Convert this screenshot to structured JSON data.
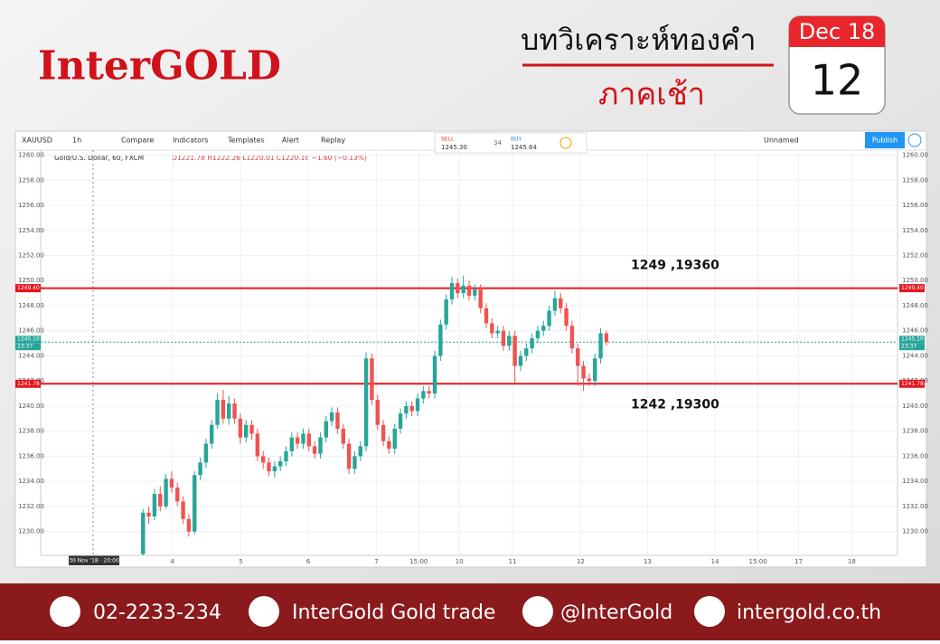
{
  "header": {
    "brand": "InterGOLD",
    "title": "บทวิเคราะห์ทองคำ",
    "subtitle": "ภาคเช้า",
    "calendar_month": "Dec 18",
    "calendar_day": "12"
  },
  "toolbar": {
    "symbol": "XAUUSD",
    "interval": "1h",
    "items": [
      "Compare",
      "Indicators",
      "Templates",
      "Alert",
      "Replay"
    ],
    "sell_label": "SELL",
    "sell_price": "1245.30",
    "spread": "34",
    "buy_label": "BUY",
    "buy_price": "1245.64",
    "layout": "Unnamed",
    "publish": "Publish"
  },
  "chart_data": {
    "type": "candlestick",
    "title": "Gold/U.S. Dollar, 60, FXCM",
    "ohlc_legend": "O1221.78 H1222.26 L1220.01 C1220.18 −1.60 (−0.13%)",
    "up_color": "#26a69a",
    "down_color": "#ef5350",
    "grid": true,
    "ylim": [
      1228.1,
      1260.4
    ],
    "yticks": [
      {
        "value": 1230,
        "label": "1230.00"
      },
      {
        "value": 1232,
        "label": "1232.00"
      },
      {
        "value": 1234,
        "label": "1234.00"
      },
      {
        "value": 1236,
        "label": "1236.00"
      },
      {
        "value": 1238,
        "label": "1238.00"
      },
      {
        "value": 1240,
        "label": "1240.00"
      },
      {
        "value": 1242,
        "label": "1242.00"
      },
      {
        "value": 1244,
        "label": "1244.00"
      },
      {
        "value": 1246,
        "label": "1246.00"
      },
      {
        "value": 1248,
        "label": "1248.00"
      },
      {
        "value": 1250,
        "label": "1250.00"
      },
      {
        "value": 1252,
        "label": "1252.00"
      },
      {
        "value": 1254,
        "label": "1254.00"
      },
      {
        "value": 1256,
        "label": "1256.00"
      },
      {
        "value": 1258,
        "label": "1258.00"
      },
      {
        "value": 1260,
        "label": "1260.00"
      }
    ],
    "xlim": [
      -17.9,
      131.9
    ],
    "xticks": [
      {
        "value": 5.1,
        "label": "4"
      },
      {
        "value": 17.1,
        "label": "5"
      },
      {
        "value": 28.9,
        "label": "6"
      },
      {
        "value": 40.8,
        "label": "7"
      },
      {
        "value": 48.2,
        "label": "15:00"
      },
      {
        "value": 55.3,
        "label": "10"
      },
      {
        "value": 64.6,
        "label": "11"
      },
      {
        "value": 76.5,
        "label": "12"
      },
      {
        "value": 88.2,
        "label": "13"
      },
      {
        "value": 100,
        "label": "14"
      },
      {
        "value": 107.5,
        "label": "15:00"
      },
      {
        "value": 114.6,
        "label": "17"
      },
      {
        "value": 123.9,
        "label": "18"
      }
    ],
    "crosshair_label": "30 Nov '18 · 20:00",
    "levels": [
      {
        "value": 1249.4,
        "label": "1249.40",
        "annotation": "1249 ,19360",
        "color": "#e8141c"
      },
      {
        "value": 1241.78,
        "label": "1241.78",
        "annotation": "1242 ,19300",
        "color": "#e8141c"
      }
    ],
    "last_price": {
      "value": 1245.1,
      "label": "1245.10",
      "countdown": "23:37",
      "color": "#26a69a"
    },
    "candles": [
      [
        1228.2,
        1231.8,
        1228.1,
        1231.5
      ],
      [
        1231.5,
        1232.0,
        1230.6,
        1231.2
      ],
      [
        1231.2,
        1233.4,
        1230.9,
        1233.0
      ],
      [
        1233.0,
        1233.6,
        1231.6,
        1232.0
      ],
      [
        1232.0,
        1234.6,
        1231.8,
        1234.2
      ],
      [
        1234.2,
        1234.8,
        1233.1,
        1233.5
      ],
      [
        1233.5,
        1233.9,
        1232.0,
        1232.4
      ],
      [
        1232.4,
        1232.8,
        1230.6,
        1231.0
      ],
      [
        1231.0,
        1231.4,
        1229.6,
        1230.0
      ],
      [
        1230.0,
        1234.8,
        1229.8,
        1234.5
      ],
      [
        1234.5,
        1235.9,
        1234.1,
        1235.5
      ],
      [
        1235.5,
        1237.4,
        1235.1,
        1237.0
      ],
      [
        1237.0,
        1238.9,
        1236.6,
        1238.5
      ],
      [
        1238.5,
        1241.0,
        1238.2,
        1240.5
      ],
      [
        1240.5,
        1241.3,
        1238.6,
        1239.0
      ],
      [
        1239.0,
        1240.8,
        1238.5,
        1240.2
      ],
      [
        1240.2,
        1240.6,
        1238.6,
        1239.0
      ],
      [
        1239.0,
        1239.4,
        1237.0,
        1237.5
      ],
      [
        1237.5,
        1238.9,
        1237.1,
        1238.5
      ],
      [
        1238.5,
        1238.9,
        1237.3,
        1237.8
      ],
      [
        1237.8,
        1238.2,
        1235.6,
        1236.0
      ],
      [
        1236.0,
        1236.4,
        1235.0,
        1235.5
      ],
      [
        1235.5,
        1235.9,
        1234.4,
        1234.8
      ],
      [
        1234.8,
        1235.6,
        1234.3,
        1235.2
      ],
      [
        1235.2,
        1236.0,
        1234.8,
        1235.6
      ],
      [
        1235.6,
        1236.8,
        1235.2,
        1236.4
      ],
      [
        1236.4,
        1237.9,
        1236.0,
        1237.5
      ],
      [
        1237.5,
        1237.9,
        1236.6,
        1237.0
      ],
      [
        1237.0,
        1238.2,
        1236.6,
        1237.8
      ],
      [
        1237.8,
        1238.2,
        1236.4,
        1236.8
      ],
      [
        1236.8,
        1237.2,
        1235.8,
        1236.2
      ],
      [
        1236.2,
        1237.9,
        1235.8,
        1237.5
      ],
      [
        1237.5,
        1239.2,
        1237.1,
        1238.8
      ],
      [
        1238.8,
        1239.9,
        1238.4,
        1239.5
      ],
      [
        1239.5,
        1239.9,
        1237.8,
        1238.2
      ],
      [
        1238.2,
        1238.6,
        1236.6,
        1237.0
      ],
      [
        1237.0,
        1237.4,
        1234.6,
        1235.0
      ],
      [
        1235.0,
        1236.4,
        1234.6,
        1236.0
      ],
      [
        1236.0,
        1237.2,
        1235.6,
        1236.8
      ],
      [
        1236.8,
        1244.3,
        1236.4,
        1243.8
      ],
      [
        1243.8,
        1244.2,
        1240.1,
        1240.5
      ],
      [
        1240.5,
        1240.9,
        1238.1,
        1238.5
      ],
      [
        1238.5,
        1238.9,
        1236.8,
        1237.2
      ],
      [
        1237.2,
        1237.6,
        1236.2,
        1236.6
      ],
      [
        1236.6,
        1238.6,
        1236.2,
        1238.2
      ],
      [
        1238.2,
        1239.8,
        1237.8,
        1239.4
      ],
      [
        1239.4,
        1240.4,
        1239.0,
        1240.0
      ],
      [
        1240.0,
        1240.4,
        1239.2,
        1239.6
      ],
      [
        1239.6,
        1241.0,
        1239.2,
        1240.6
      ],
      [
        1240.6,
        1241.6,
        1240.2,
        1241.2
      ],
      [
        1241.2,
        1241.6,
        1240.6,
        1241.0
      ],
      [
        1241.0,
        1244.4,
        1240.6,
        1244.0
      ],
      [
        1244.0,
        1246.9,
        1243.6,
        1246.5
      ],
      [
        1246.5,
        1248.9,
        1246.1,
        1248.5
      ],
      [
        1248.5,
        1250.3,
        1248.1,
        1249.8
      ],
      [
        1249.8,
        1250.2,
        1248.6,
        1249.0
      ],
      [
        1249.0,
        1250.4,
        1248.6,
        1249.6
      ],
      [
        1249.6,
        1250.0,
        1248.4,
        1248.8
      ],
      [
        1248.8,
        1249.7,
        1248.4,
        1249.3
      ],
      [
        1249.3,
        1249.7,
        1247.4,
        1247.8
      ],
      [
        1247.8,
        1248.2,
        1246.2,
        1246.6
      ],
      [
        1246.6,
        1247.0,
        1245.4,
        1245.8
      ],
      [
        1245.8,
        1246.4,
        1245.4,
        1246.0
      ],
      [
        1246.0,
        1246.4,
        1244.4,
        1244.8
      ],
      [
        1244.8,
        1246.0,
        1244.4,
        1245.6
      ],
      [
        1245.6,
        1246.0,
        1241.8,
        1243.2
      ],
      [
        1243.2,
        1244.4,
        1242.8,
        1244.0
      ],
      [
        1244.0,
        1245.0,
        1243.6,
        1244.6
      ],
      [
        1244.6,
        1245.8,
        1244.2,
        1245.4
      ],
      [
        1245.4,
        1246.4,
        1245.0,
        1246.0
      ],
      [
        1246.0,
        1246.8,
        1245.6,
        1246.4
      ],
      [
        1246.4,
        1248.0,
        1246.0,
        1247.6
      ],
      [
        1247.6,
        1249.2,
        1247.2,
        1248.6
      ],
      [
        1248.6,
        1249.0,
        1247.4,
        1247.8
      ],
      [
        1247.8,
        1248.2,
        1246.0,
        1246.4
      ],
      [
        1246.4,
        1246.8,
        1244.2,
        1244.6
      ],
      [
        1244.6,
        1245.0,
        1241.6,
        1243.2
      ],
      [
        1243.2,
        1243.6,
        1241.2,
        1242.2
      ],
      [
        1242.2,
        1242.6,
        1241.6,
        1242.0
      ],
      [
        1242.0,
        1244.2,
        1241.6,
        1243.8
      ],
      [
        1243.8,
        1246.2,
        1243.4,
        1245.8
      ],
      [
        1245.8,
        1246.0,
        1244.8,
        1245.1
      ]
    ]
  },
  "footer": {
    "phone": "02-2233-234",
    "facebook": "InterGold Gold trade",
    "line": "@InterGold",
    "website": "intergold.co.th"
  }
}
